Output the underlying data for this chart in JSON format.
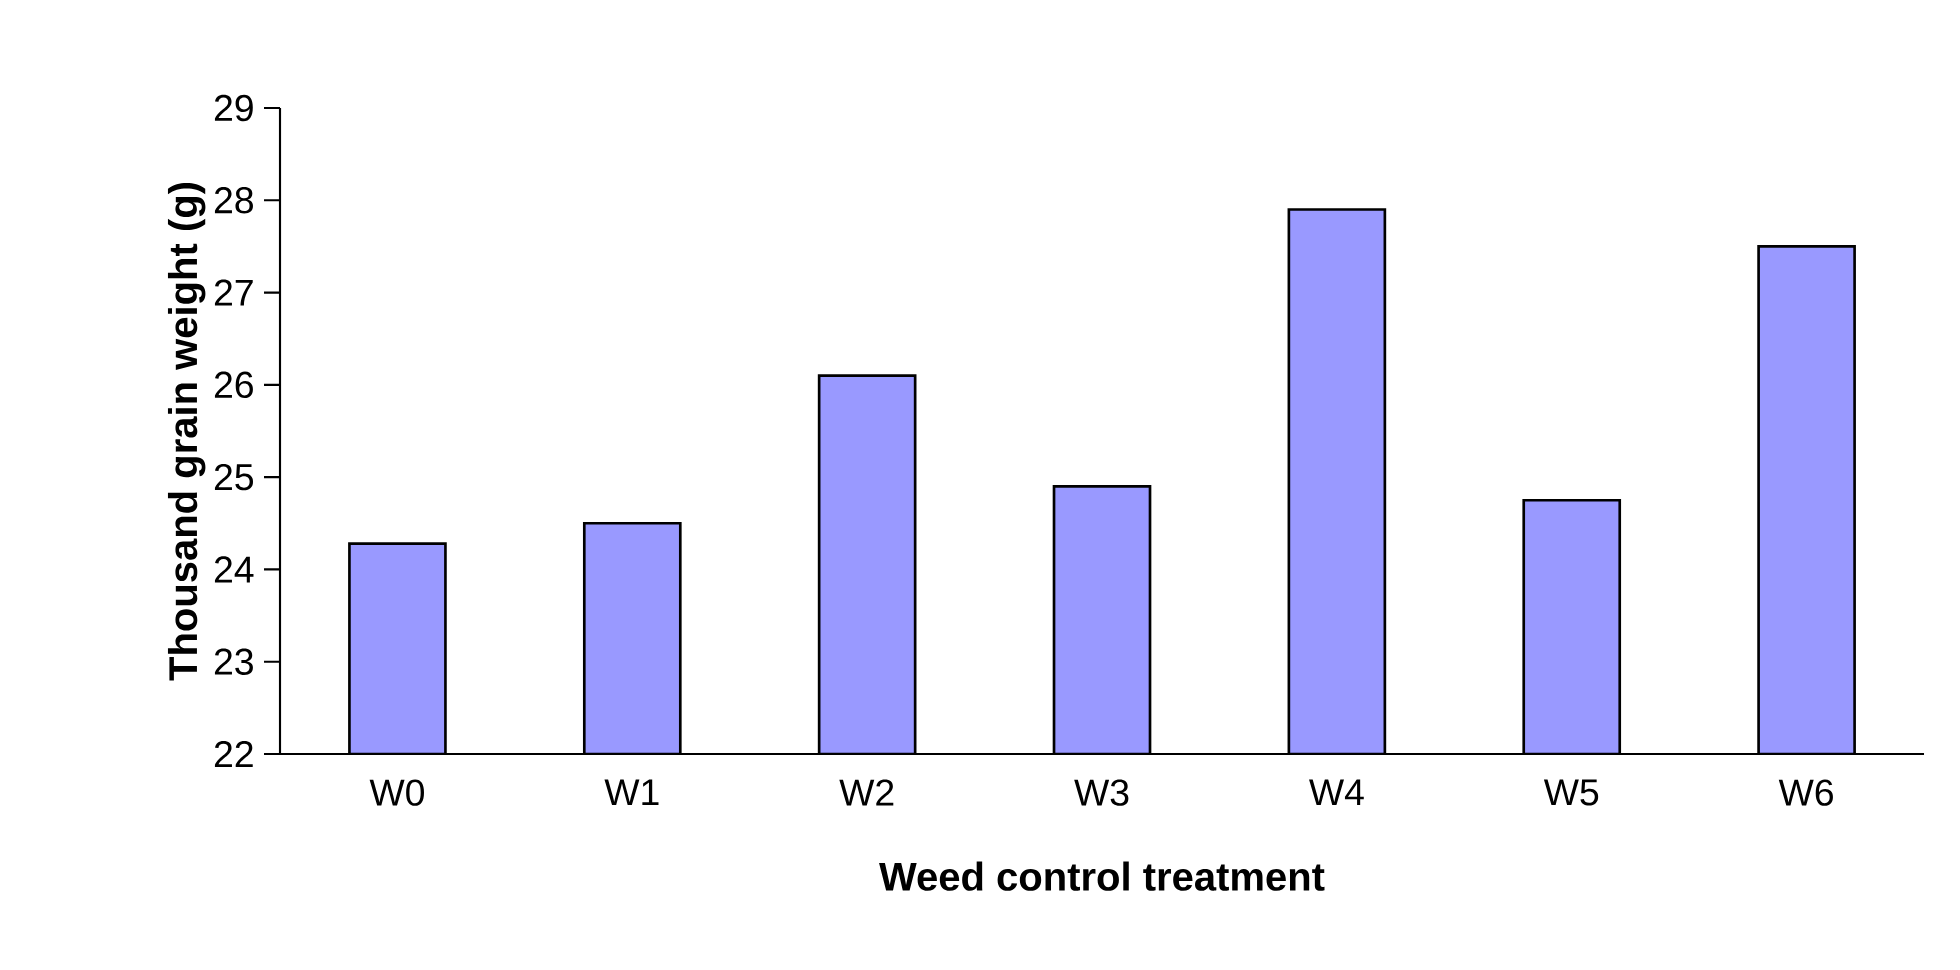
{
  "chart_data": {
    "type": "bar",
    "xlabel": "Weed control treatment",
    "ylabel": "Thousand  grain weight (g)",
    "categories": [
      "W0",
      "W1",
      "W2",
      "W3",
      "W4",
      "W5",
      "W6"
    ],
    "values": [
      24.28,
      24.5,
      26.1,
      24.9,
      27.9,
      24.75,
      27.5
    ],
    "color": "#9999ff",
    "ylim": [
      22,
      29
    ],
    "yticks": [
      22,
      23,
      24,
      25,
      26,
      27,
      28,
      29
    ],
    "grid": false
  }
}
